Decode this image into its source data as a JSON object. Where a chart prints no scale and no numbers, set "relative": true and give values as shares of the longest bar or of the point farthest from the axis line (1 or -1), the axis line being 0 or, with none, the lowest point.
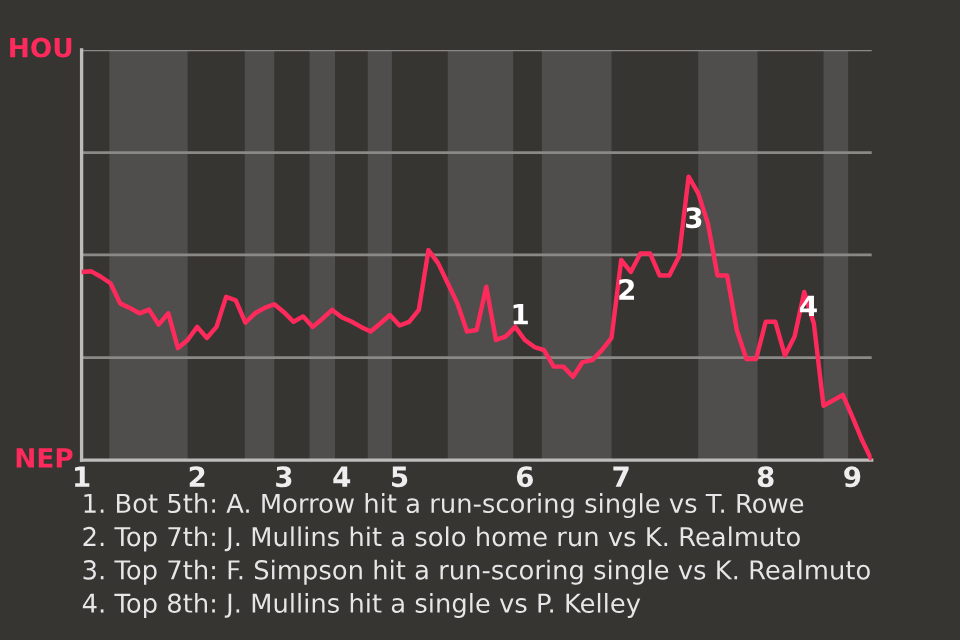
{
  "chart_data": {
    "type": "line",
    "relative": true,
    "categories": [
      "1",
      null,
      null,
      null,
      null,
      null,
      null,
      null,
      null,
      null,
      null,
      null,
      "2",
      null,
      null,
      null,
      null,
      null,
      null,
      null,
      null,
      "3",
      null,
      null,
      null,
      null,
      null,
      "4",
      null,
      null,
      null,
      null,
      null,
      "5",
      null,
      null,
      null,
      null,
      null,
      null,
      null,
      null,
      null,
      null,
      null,
      null,
      "6",
      null,
      null,
      null,
      null,
      null,
      null,
      null,
      null,
      null,
      "7",
      null,
      null,
      null,
      null,
      null,
      null,
      null,
      null,
      null,
      null,
      null,
      null,
      null,
      null,
      "8",
      null,
      null,
      null,
      null,
      null,
      null,
      null,
      null,
      "9",
      null,
      null
    ],
    "series": [
      {
        "color": "#ff2a5c",
        "values": [
          0.664,
          0.666,
          0.647,
          0.624,
          0.553,
          0.537,
          0.518,
          0.531,
          0.478,
          0.518,
          0.395,
          0.424,
          0.47,
          0.431,
          0.47,
          0.576,
          0.564,
          0.485,
          0.518,
          0.537,
          0.55,
          0.522,
          0.488,
          0.507,
          0.47,
          0.499,
          0.53,
          0.504,
          0.489,
          0.47,
          0.454,
          0.482,
          0.512,
          0.475,
          0.488,
          0.53,
          0.741,
          0.695,
          0.624,
          0.553,
          0.454,
          0.459,
          0.612,
          0.424,
          0.436,
          0.47,
          0.424,
          0.399,
          0.388,
          0.33,
          0.33,
          0.294,
          0.346,
          0.353,
          0.388,
          0.431,
          0.706,
          0.664,
          0.729,
          0.729,
          0.651,
          0.651,
          0.718,
          1,
          0.941,
          0.835,
          0.651,
          0.651,
          0.459,
          0.357,
          0.357,
          0.488,
          0.488,
          0.369,
          0.436,
          0.593,
          0.482,
          0.192,
          0.211,
          0.23,
          0.153,
          0.071,
          0
        ]
      }
    ],
    "grid": false,
    "marker": "none",
    "line_style": "solid",
    "ref_lines": [
      {
        "axis": "y",
        "value": 0.362,
        "color": "#8a8986"
      },
      {
        "axis": "y",
        "value": 0.724,
        "color": "#8a8986"
      },
      {
        "axis": "y",
        "value": 1.085,
        "color": "#8a8986"
      },
      {
        "axis": "y",
        "value": 1.447,
        "color": "#8a8986"
      }
    ],
    "annotations": [
      "1",
      "2",
      "3",
      "4",
      "HOU",
      "NEP",
      "1. Bot 5th: A. Morrow hit a run-scoring single vs T. Rowe",
      "2. Top 7th: J. Mullins hit a solo home run vs K. Realmuto",
      "3. Top 7th: F. Simpson hit a run-scoring single vs K. Realmuto",
      "4. Top 8th: J. Mullins hit a single vs P. Kelley"
    ]
  }
}
